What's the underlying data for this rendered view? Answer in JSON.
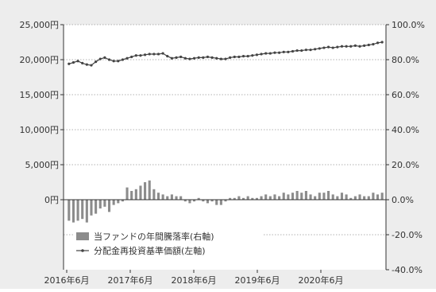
{
  "chart_data": {
    "type": "bar+line",
    "title": "",
    "x_tick_labels": [
      "2016年6月",
      "2017年6月",
      "2018年6月",
      "2019年6月",
      "2020年6月"
    ],
    "left_axis": {
      "ticks": [
        "0円",
        "5,000円",
        "10,000円",
        "15,000円",
        "20,000円",
        "25,000円"
      ],
      "tick_values": [
        0,
        5000,
        10000,
        15000,
        20000,
        25000
      ],
      "ylim": [
        -10000,
        25000
      ]
    },
    "right_axis": {
      "ticks": [
        "-40.0%",
        "-20.0%",
        "0.0%",
        "20.0%",
        "40.0%",
        "60.0%",
        "80.0%",
        "100.0%"
      ],
      "tick_values": [
        -40,
        -20,
        0,
        20,
        40,
        60,
        80,
        100
      ],
      "ylim": [
        -40,
        100
      ]
    },
    "grid": "dotted-horizontal",
    "legend_position": "lower-left",
    "series": [
      {
        "name": "当ファンドの年間騰落率(右軸)",
        "type": "bar",
        "axis": "right",
        "color": "#8c8c8c",
        "values": [
          -12,
          -13,
          -12,
          -11,
          -13,
          -9,
          -8,
          -5,
          -4,
          -7,
          -3,
          -2,
          -1,
          7,
          5,
          6,
          8,
          10,
          11,
          6,
          4,
          3,
          2,
          3,
          2,
          2,
          -1,
          -2,
          -1,
          1,
          -1,
          -2,
          -1,
          -3,
          -3,
          -1,
          1,
          1,
          2,
          1,
          2,
          1,
          1,
          2,
          3,
          2,
          3,
          2,
          4,
          3,
          4,
          5,
          4,
          5,
          3,
          2,
          4,
          4,
          5,
          3,
          2,
          4,
          3,
          1,
          2,
          3,
          2,
          2,
          4,
          3,
          4
        ]
      },
      {
        "name": "分配金再投資基準価額(左軸)",
        "type": "line",
        "axis": "left",
        "color": "#444444",
        "values": [
          19400,
          19600,
          19800,
          19500,
          19300,
          19200,
          19700,
          20100,
          20300,
          20000,
          19800,
          19800,
          20000,
          20200,
          20400,
          20600,
          20600,
          20700,
          20800,
          20800,
          20800,
          20900,
          20500,
          20200,
          20300,
          20400,
          20200,
          20100,
          20200,
          20300,
          20300,
          20400,
          20300,
          20200,
          20100,
          20100,
          20300,
          20400,
          20400,
          20500,
          20500,
          20600,
          20700,
          20800,
          20900,
          20900,
          21000,
          21000,
          21100,
          21100,
          21200,
          21300,
          21300,
          21400,
          21400,
          21500,
          21600,
          21700,
          21800,
          21700,
          21800,
          21900,
          21900,
          21900,
          22000,
          21900,
          22000,
          22100,
          22200,
          22400,
          22500
        ]
      }
    ]
  },
  "legend": {
    "bar_label": "当ファンドの年間騰落率(右軸)",
    "line_label": "分配金再投資基準価額(左軸)"
  },
  "colors": {
    "background_outer": "#ededed",
    "plot_background": "#ffffff",
    "bar": "#8c8c8c",
    "line": "#444444",
    "grid": "#999999",
    "axis": "#333333"
  }
}
